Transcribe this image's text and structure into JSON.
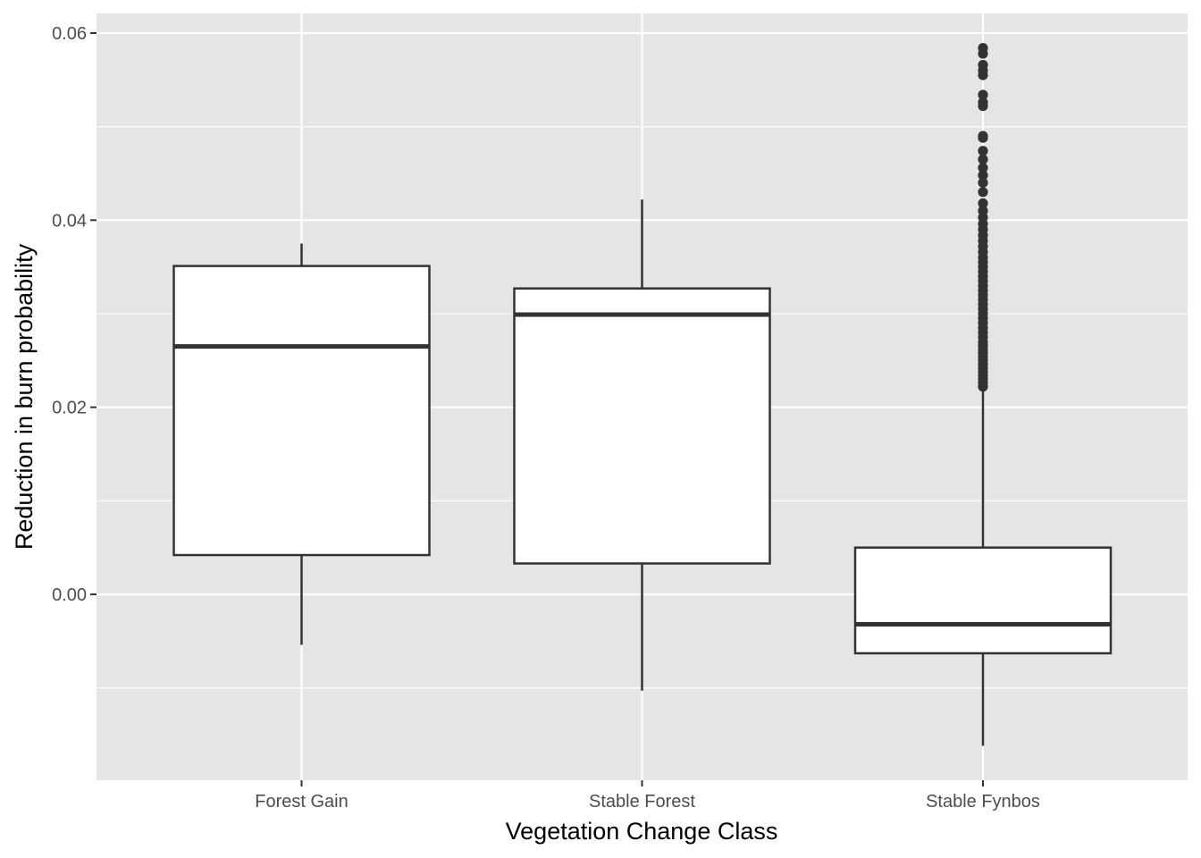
{
  "chart_data": {
    "type": "boxplot",
    "title": "",
    "xlabel": "Vegetation Change Class",
    "ylabel": "Reduction in burn probability",
    "ylim": [
      -0.0198,
      0.0618
    ],
    "y_ticks": [
      0.0,
      0.02,
      0.04,
      0.06
    ],
    "y_tick_labels": [
      "0.00",
      "0.02",
      "0.04",
      "0.06"
    ],
    "grid": true,
    "legend": "none",
    "colors": {
      "panel_background": "#e5e5e5",
      "grid": "#ffffff",
      "box_fill": "#ffffff",
      "box_line": "#333333",
      "outlier": "#333333",
      "tick_label": "#4d4d4d"
    },
    "categories": [
      "Forest Gain",
      "Stable Forest",
      "Stable Fynbos"
    ],
    "boxes": [
      {
        "category": "Forest Gain",
        "whisker_low": -0.0054,
        "q1": 0.0042,
        "median": 0.0265,
        "q3": 0.0351,
        "whisker_high": 0.0375,
        "outliers": []
      },
      {
        "category": "Stable Forest",
        "whisker_low": -0.0103,
        "q1": 0.0033,
        "median": 0.0299,
        "q3": 0.0327,
        "whisker_high": 0.0422,
        "outliers": []
      },
      {
        "category": "Stable Fynbos",
        "whisker_low": -0.0162,
        "q1": -0.0063,
        "median": -0.0032,
        "q3": 0.005,
        "whisker_high": 0.0218,
        "outliers": [
          0.0222,
          0.0226,
          0.023,
          0.0234,
          0.0238,
          0.0242,
          0.0246,
          0.025,
          0.0254,
          0.0258,
          0.0262,
          0.0266,
          0.027,
          0.0275,
          0.028,
          0.0285,
          0.029,
          0.0295,
          0.03,
          0.0305,
          0.031,
          0.0315,
          0.032,
          0.0325,
          0.033,
          0.0335,
          0.034,
          0.0345,
          0.035,
          0.0355,
          0.036,
          0.0366,
          0.0372,
          0.0378,
          0.0384,
          0.039,
          0.0396,
          0.0403,
          0.041,
          0.0418,
          0.043,
          0.044,
          0.0448,
          0.0456,
          0.0465,
          0.0474,
          0.0488,
          0.049,
          0.0522,
          0.0526,
          0.0534,
          0.0555,
          0.056,
          0.0566,
          0.0578,
          0.0584
        ]
      }
    ]
  }
}
